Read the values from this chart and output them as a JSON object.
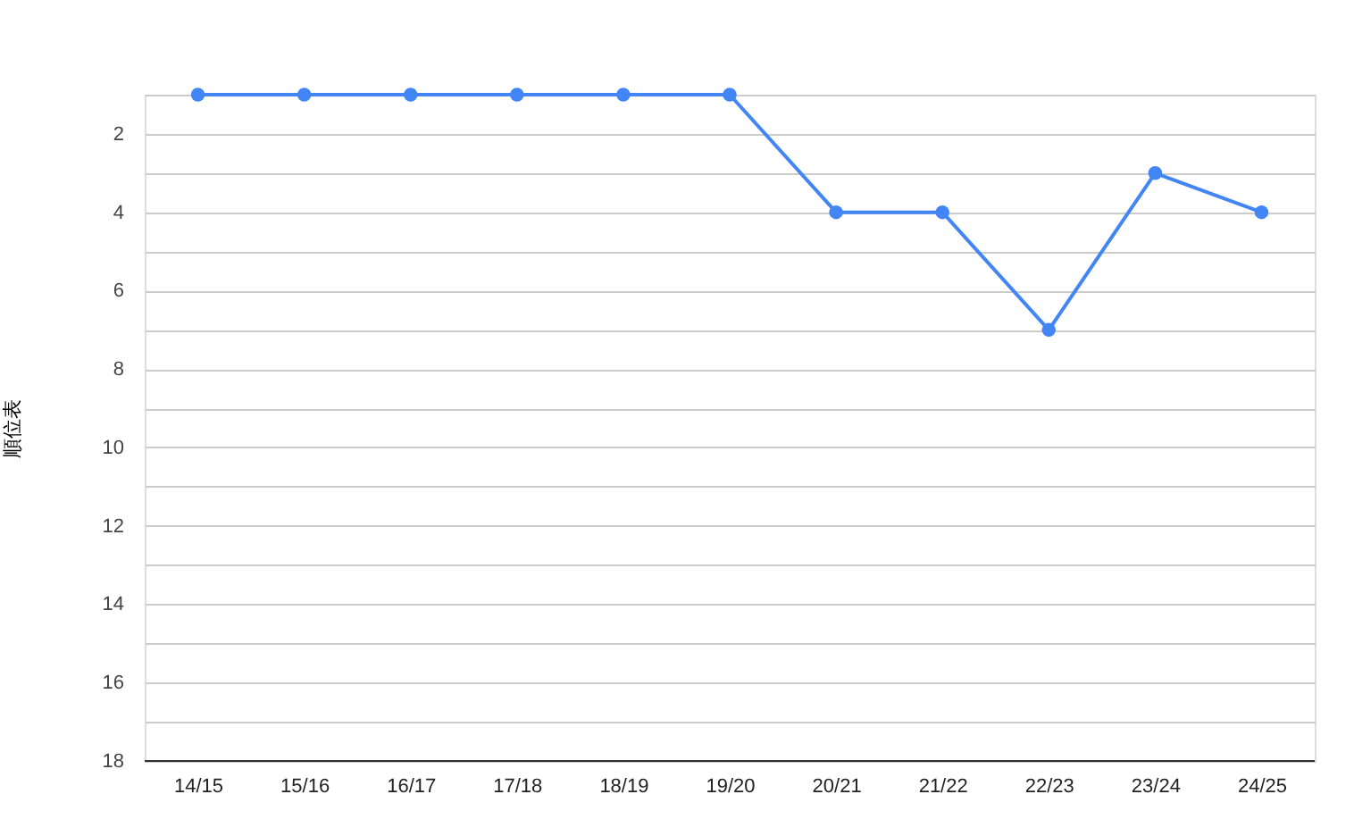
{
  "chart_data": {
    "type": "line",
    "ylabel": "順位表",
    "categories": [
      "14/15",
      "15/16",
      "16/17",
      "17/18",
      "18/19",
      "19/20",
      "20/21",
      "21/22",
      "22/23",
      "23/24",
      "24/25"
    ],
    "series": [
      {
        "color": "#4285f4",
        "values": [
          1,
          1,
          1,
          1,
          1,
          1,
          4,
          4,
          7,
          3,
          4
        ]
      }
    ],
    "ylim": [
      18,
      1
    ],
    "yticks": [
      {
        "value": 1,
        "label": null
      },
      2,
      {
        "value": 3,
        "label": null
      },
      4,
      {
        "value": 5,
        "label": null
      },
      6,
      {
        "value": 7,
        "label": null
      },
      8,
      {
        "value": 9,
        "label": null
      },
      10,
      {
        "value": 11,
        "label": null
      },
      12,
      {
        "value": 13,
        "label": null
      },
      14,
      {
        "value": 15,
        "label": null
      },
      16,
      {
        "value": 17,
        "label": null
      },
      18
    ],
    "grid": "y",
    "marker": "circle",
    "line_style": "solid"
  }
}
